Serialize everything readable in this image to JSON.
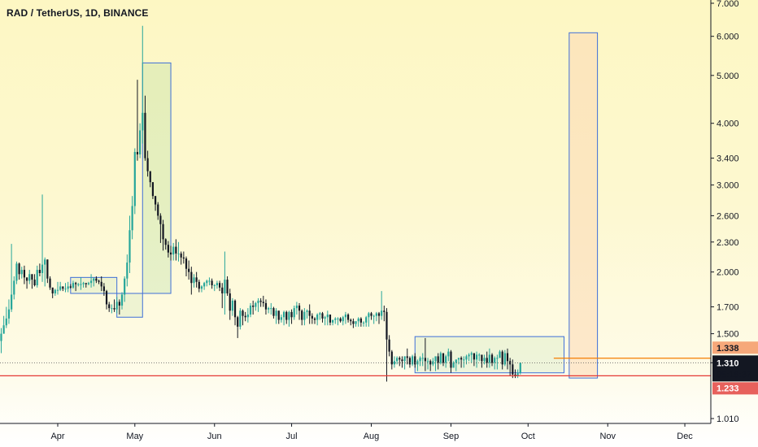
{
  "header": {
    "title": "RAD / TetherUS, 1D, BINANCE"
  },
  "price_labels": {
    "resistance": "1.338",
    "current": "1.310",
    "countdown": "05:16:37",
    "support": "1.233"
  },
  "colors": {
    "up": "#26a69a",
    "down": "#131722",
    "box_stroke": "#3f6fd8",
    "resistance": "#f57c00",
    "support": "#e53935",
    "target_fill": "#fcd9b4"
  },
  "chart_data": {
    "type": "candlestick",
    "title": "RAD / TetherUS, 1D, BINANCE",
    "y_scale": "log",
    "ylim": [
      0.96,
      7.0
    ],
    "y_ticks": [
      "7.000",
      "6.000",
      "5.000",
      "4.000",
      "3.400",
      "3.000",
      "2.600",
      "2.300",
      "2.000",
      "1.700",
      "1.500",
      "1.310",
      "1.010"
    ],
    "x_ticks": [
      "Apr",
      "May",
      "Jun",
      "Jul",
      "Aug",
      "Sep",
      "Oct",
      "Nov",
      "Dec"
    ],
    "levels": {
      "resistance": 1.338,
      "current": 1.31,
      "support": 1.233
    },
    "zones": [
      {
        "from": "Apr 6",
        "to": "Apr 24",
        "low": 1.81,
        "high": 1.95
      },
      {
        "from": "Apr 24",
        "to": "May 4",
        "low": 1.62,
        "high": 1.81
      },
      {
        "from": "May 4",
        "to": "May 15",
        "low": 1.81,
        "high": 5.3
      },
      {
        "from": "Aug 18",
        "to": "Oct 15",
        "low": 1.25,
        "high": 1.48
      },
      {
        "from": "Oct 17",
        "to": "Oct 28",
        "low": 1.22,
        "high": 6.1
      }
    ],
    "candles": {
      "start": "Mar 8",
      "close": [
        1.42,
        1.45,
        1.5,
        1.56,
        1.61,
        1.68,
        1.8,
        1.92,
        2.08,
        1.98,
        2.02,
        1.95,
        1.92,
        1.98,
        1.93,
        1.88,
        2.02,
        1.99,
        2.07,
        2.12,
        1.94,
        1.86,
        1.81,
        1.84,
        1.84,
        1.87,
        1.85,
        1.85,
        1.87,
        1.86,
        1.9,
        1.89,
        1.89,
        1.89,
        1.9,
        1.89,
        1.9,
        1.92,
        1.94,
        1.92,
        1.91,
        1.87,
        1.83,
        1.72,
        1.69,
        1.69,
        1.68,
        1.74,
        1.71,
        1.8,
        1.94,
        2.09,
        2.43,
        2.72,
        3.5,
        3.46,
        3.87,
        4.2,
        3.4,
        3.2,
        3.04,
        2.85,
        2.74,
        2.6,
        2.5,
        2.33,
        2.27,
        2.19,
        2.17,
        2.25,
        2.18,
        2.18,
        2.14,
        2.13,
        2.03,
        2.0,
        1.9,
        1.95,
        1.91,
        1.85,
        1.87,
        1.9,
        1.92,
        1.92,
        1.88,
        1.88,
        1.9,
        1.86,
        1.81,
        1.93,
        1.81,
        1.67,
        1.75,
        1.62,
        1.55,
        1.67,
        1.63,
        1.62,
        1.64,
        1.71,
        1.7,
        1.73,
        1.75,
        1.74,
        1.73,
        1.68,
        1.69,
        1.69,
        1.63,
        1.67,
        1.6,
        1.62,
        1.66,
        1.6,
        1.66,
        1.62,
        1.69,
        1.71,
        1.67,
        1.6,
        1.66,
        1.67,
        1.63,
        1.61,
        1.6,
        1.64,
        1.65,
        1.61,
        1.62,
        1.64,
        1.58,
        1.6,
        1.61,
        1.61,
        1.59,
        1.62,
        1.64,
        1.6,
        1.59,
        1.57,
        1.59,
        1.61,
        1.58,
        1.58,
        1.62,
        1.65,
        1.63,
        1.63,
        1.65,
        1.63,
        1.67,
        1.66,
        1.46,
        1.38,
        1.3,
        1.32,
        1.34,
        1.33,
        1.32,
        1.35,
        1.34,
        1.3,
        1.35,
        1.3,
        1.32,
        1.34,
        1.34,
        1.32,
        1.32,
        1.3,
        1.32,
        1.35,
        1.31,
        1.37,
        1.31,
        1.35,
        1.38,
        1.28,
        1.31,
        1.33,
        1.34,
        1.33,
        1.33,
        1.35,
        1.36,
        1.37,
        1.33,
        1.36,
        1.36,
        1.32,
        1.34,
        1.31,
        1.36,
        1.31,
        1.34,
        1.34,
        1.38,
        1.3,
        1.37,
        1.32,
        1.3,
        1.24,
        1.23,
        1.25,
        1.31
      ],
      "high": [
        1.46,
        1.55,
        1.54,
        1.63,
        1.7,
        1.76,
        2.28,
        1.96,
        2.1,
        2.09,
        2.05,
        2.06,
        1.95,
        2.02,
        1.97,
        1.98,
        2.06,
        2.08,
        2.87,
        2.14,
        2.01,
        1.96,
        1.84,
        1.85,
        1.91,
        1.91,
        1.87,
        1.9,
        1.91,
        1.89,
        1.92,
        1.91,
        1.9,
        1.95,
        1.91,
        1.9,
        1.91,
        1.98,
        1.95,
        1.96,
        1.93,
        1.96,
        1.9,
        1.84,
        1.74,
        1.72,
        1.76,
        1.78,
        1.76,
        1.82,
        1.96,
        2.17,
        2.6,
        2.85,
        3.56,
        4.9,
        4.0,
        6.3,
        4.55,
        3.52,
        3.14,
        3.01,
        2.78,
        2.77,
        2.63,
        2.55,
        2.34,
        2.31,
        2.26,
        2.29,
        2.33,
        2.3,
        2.2,
        2.2,
        2.15,
        2.11,
        2.05,
        1.98,
        2.0,
        1.93,
        1.88,
        1.91,
        1.93,
        1.95,
        1.94,
        1.89,
        1.92,
        1.92,
        1.9,
        2.2,
        1.96,
        1.85,
        1.77,
        1.76,
        1.63,
        1.69,
        1.68,
        1.66,
        1.69,
        1.73,
        1.75,
        1.74,
        1.77,
        1.77,
        1.79,
        1.76,
        1.7,
        1.73,
        1.7,
        1.69,
        1.67,
        1.64,
        1.67,
        1.67,
        1.67,
        1.68,
        1.71,
        1.74,
        1.73,
        1.68,
        1.69,
        1.68,
        1.72,
        1.65,
        1.62,
        1.65,
        1.66,
        1.66,
        1.63,
        1.67,
        1.64,
        1.6,
        1.62,
        1.62,
        1.62,
        1.63,
        1.66,
        1.65,
        1.61,
        1.61,
        1.59,
        1.62,
        1.62,
        1.59,
        1.63,
        1.66,
        1.66,
        1.64,
        1.66,
        1.66,
        1.83,
        1.71,
        1.69,
        1.49,
        1.39,
        1.35,
        1.35,
        1.35,
        1.35,
        1.35,
        1.4,
        1.35,
        1.36,
        1.37,
        1.33,
        1.35,
        1.37,
        1.47,
        1.34,
        1.33,
        1.34,
        1.35,
        1.37,
        1.38,
        1.37,
        1.36,
        1.4,
        1.39,
        1.32,
        1.33,
        1.34,
        1.35,
        1.35,
        1.36,
        1.37,
        1.38,
        1.37,
        1.38,
        1.37,
        1.36,
        1.36,
        1.38,
        1.4,
        1.37,
        1.35,
        1.36,
        1.39,
        1.39,
        1.39,
        1.4,
        1.34,
        1.33,
        1.27,
        1.27,
        1.31
      ],
      "low": [
        1.38,
        1.32,
        1.37,
        1.51,
        1.54,
        1.57,
        1.66,
        1.76,
        1.89,
        1.93,
        1.94,
        1.89,
        1.85,
        1.89,
        1.85,
        1.87,
        1.86,
        1.96,
        1.91,
        1.87,
        1.9,
        1.84,
        1.77,
        1.79,
        1.8,
        1.83,
        1.83,
        1.82,
        1.82,
        1.85,
        1.85,
        1.83,
        1.87,
        1.84,
        1.86,
        1.86,
        1.88,
        1.86,
        1.87,
        1.9,
        1.89,
        1.83,
        1.79,
        1.68,
        1.66,
        1.65,
        1.66,
        1.65,
        1.64,
        1.68,
        1.74,
        1.87,
        1.99,
        2.33,
        2.62,
        3.36,
        3.4,
        3.64,
        3.36,
        3.12,
        2.97,
        2.81,
        2.66,
        2.55,
        2.29,
        2.21,
        2.22,
        2.14,
        2.11,
        2.11,
        2.11,
        2.1,
        2.07,
        2.08,
        1.96,
        1.93,
        1.8,
        1.86,
        1.86,
        1.82,
        1.82,
        1.84,
        1.87,
        1.88,
        1.85,
        1.83,
        1.85,
        1.83,
        1.69,
        1.64,
        1.79,
        1.6,
        1.63,
        1.56,
        1.47,
        1.53,
        1.56,
        1.59,
        1.58,
        1.62,
        1.64,
        1.67,
        1.66,
        1.7,
        1.7,
        1.64,
        1.65,
        1.64,
        1.61,
        1.57,
        1.57,
        1.58,
        1.56,
        1.57,
        1.55,
        1.57,
        1.6,
        1.64,
        1.6,
        1.56,
        1.56,
        1.61,
        1.57,
        1.57,
        1.57,
        1.56,
        1.6,
        1.58,
        1.56,
        1.56,
        1.56,
        1.56,
        1.57,
        1.56,
        1.58,
        1.56,
        1.57,
        1.58,
        1.56,
        1.54,
        1.55,
        1.55,
        1.55,
        1.55,
        1.55,
        1.55,
        1.6,
        1.57,
        1.59,
        1.57,
        1.6,
        1.59,
        1.2,
        1.35,
        1.27,
        1.28,
        1.3,
        1.29,
        1.28,
        1.27,
        1.3,
        1.28,
        1.29,
        1.28,
        1.26,
        1.29,
        1.29,
        1.26,
        1.27,
        1.26,
        1.29,
        1.26,
        1.27,
        1.3,
        1.29,
        1.28,
        1.32,
        1.25,
        1.28,
        1.26,
        1.3,
        1.28,
        1.28,
        1.3,
        1.32,
        1.31,
        1.29,
        1.28,
        1.32,
        1.28,
        1.3,
        1.28,
        1.28,
        1.29,
        1.27,
        1.27,
        1.34,
        1.27,
        1.29,
        1.27,
        1.23,
        1.22,
        1.22,
        1.22,
        1.24
      ]
    }
  }
}
